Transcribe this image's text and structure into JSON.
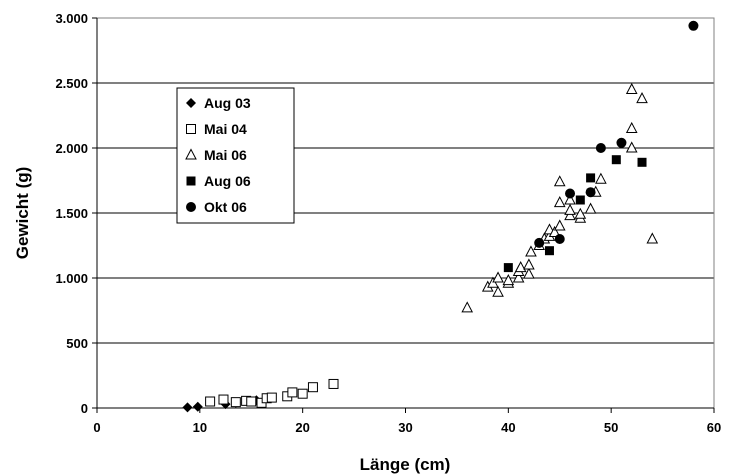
{
  "chart_data": {
    "type": "scatter",
    "xlabel": "Länge (cm)",
    "ylabel": "Gewicht (g)",
    "xlim": [
      0,
      60
    ],
    "ylim": [
      0,
      3000
    ],
    "x_ticks": [
      {
        "value": 0,
        "label": "0"
      },
      {
        "value": 10,
        "label": "10"
      },
      {
        "value": 20,
        "label": "20"
      },
      {
        "value": 30,
        "label": "30"
      },
      {
        "value": 40,
        "label": "40"
      },
      {
        "value": 50,
        "label": "50"
      },
      {
        "value": 60,
        "label": "60"
      }
    ],
    "y_ticks": [
      {
        "value": 0,
        "label": "0"
      },
      {
        "value": 500,
        "label": "500"
      },
      {
        "value": 1000,
        "label": "1.000"
      },
      {
        "value": 1500,
        "label": "1.500"
      },
      {
        "value": 2000,
        "label": "2.000"
      },
      {
        "value": 2500,
        "label": "2.500"
      },
      {
        "value": 3000,
        "label": "3.000"
      }
    ],
    "grid": "horizontal",
    "legend_position": "upper-left",
    "series": [
      {
        "name": "Aug 03",
        "marker": "diamond-filled",
        "points": [
          [
            8.8,
            5
          ],
          [
            9.8,
            10
          ],
          [
            12.5,
            30
          ],
          [
            13.5,
            40
          ],
          [
            15.5,
            60
          ]
        ]
      },
      {
        "name": "Mai 04",
        "marker": "square-open",
        "points": [
          [
            11,
            50
          ],
          [
            12.3,
            65
          ],
          [
            13.5,
            45
          ],
          [
            14.5,
            55
          ],
          [
            15,
            50
          ],
          [
            16,
            40
          ],
          [
            16.5,
            75
          ],
          [
            17,
            80
          ],
          [
            18.5,
            90
          ],
          [
            19,
            120
          ],
          [
            20,
            110
          ],
          [
            21,
            160
          ],
          [
            23,
            185
          ]
        ]
      },
      {
        "name": "Mai 06",
        "marker": "triangle-open",
        "points": [
          [
            36,
            770
          ],
          [
            38,
            930
          ],
          [
            38.5,
            960
          ],
          [
            39,
            890
          ],
          [
            39,
            1000
          ],
          [
            40,
            960
          ],
          [
            40,
            980
          ],
          [
            41,
            1000
          ],
          [
            41,
            1050
          ],
          [
            41.2,
            1080
          ],
          [
            42,
            1030
          ],
          [
            42,
            1100
          ],
          [
            42.2,
            1200
          ],
          [
            43,
            1250
          ],
          [
            43.5,
            1300
          ],
          [
            44,
            1320
          ],
          [
            44,
            1370
          ],
          [
            44.5,
            1350
          ],
          [
            45,
            1400
          ],
          [
            45,
            1580
          ],
          [
            45,
            1740
          ],
          [
            46,
            1480
          ],
          [
            46,
            1520
          ],
          [
            46,
            1600
          ],
          [
            47,
            1460
          ],
          [
            47,
            1490
          ],
          [
            48,
            1530
          ],
          [
            48.5,
            1660
          ],
          [
            49,
            1760
          ],
          [
            52,
            2000
          ],
          [
            52,
            2150
          ],
          [
            52,
            2450
          ],
          [
            53,
            2380
          ],
          [
            54,
            1300
          ]
        ]
      },
      {
        "name": "Aug 06",
        "marker": "square-filled",
        "points": [
          [
            40,
            1080
          ],
          [
            44,
            1210
          ],
          [
            47,
            1600
          ],
          [
            48,
            1770
          ],
          [
            50.5,
            1910
          ],
          [
            53,
            1890
          ]
        ]
      },
      {
        "name": "Okt 06",
        "marker": "circle-filled",
        "points": [
          [
            43,
            1270
          ],
          [
            45,
            1300
          ],
          [
            46,
            1650
          ],
          [
            48,
            1660
          ],
          [
            49,
            2000
          ],
          [
            51,
            2040
          ],
          [
            58,
            2940
          ]
        ]
      }
    ]
  }
}
